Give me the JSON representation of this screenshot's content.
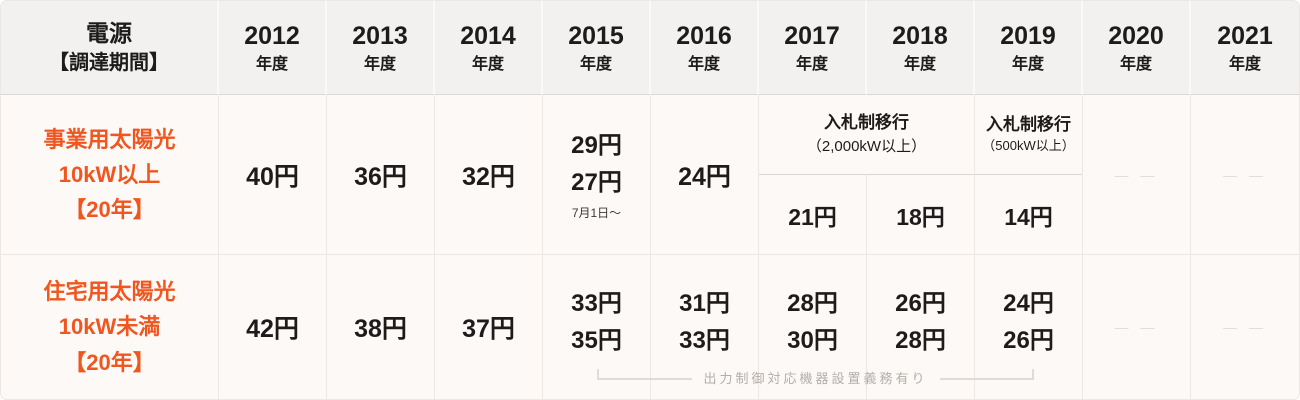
{
  "colors": {
    "accent": "#f0561f",
    "header-bg": "#f2f1f0",
    "body-bg": "#fdf9f6",
    "border": "#ece7e3",
    "border-dark": "#dcd7d3",
    "text": "#1e1c1a",
    "muted": "#b3aeab",
    "dash": "#e0dbd7"
  },
  "header": {
    "power_source": {
      "line1": "電源",
      "line2": "【調達期間】"
    },
    "years": [
      {
        "y": "2012",
        "suffix": "年度"
      },
      {
        "y": "2013",
        "suffix": "年度"
      },
      {
        "y": "2014",
        "suffix": "年度"
      },
      {
        "y": "2015",
        "suffix": "年度"
      },
      {
        "y": "2016",
        "suffix": "年度"
      },
      {
        "y": "2017",
        "suffix": "年度"
      },
      {
        "y": "2018",
        "suffix": "年度"
      },
      {
        "y": "2019",
        "suffix": "年度"
      },
      {
        "y": "2020",
        "suffix": "年度"
      },
      {
        "y": "2021",
        "suffix": "年度"
      }
    ]
  },
  "rows": [
    {
      "label": {
        "line1": "事業用太陽光",
        "line2": "10kW以上",
        "line3": "【20年】"
      },
      "cells": {
        "y2012": "40円",
        "y2013": "36円",
        "y2014": "32円",
        "y2015": {
          "v1": "29円",
          "v2": "27円",
          "note": "7月1日〜"
        },
        "y2016": "24円",
        "tender_2017_2018": {
          "title": "入札制移行",
          "subtitle": "（2,000kW以上）",
          "p2017": "21円",
          "p2018": "18円"
        },
        "tender_2019": {
          "title": "入札制移行",
          "subtitle": "（500kW以上）",
          "price": "14円"
        },
        "y2020": "— —",
        "y2021": "— —"
      }
    },
    {
      "label": {
        "line1": "住宅用太陽光",
        "line2": "10kW未満",
        "line3": "【20年】"
      },
      "cells": {
        "y2012": "42円",
        "y2013": "38円",
        "y2014": "37円",
        "y2015": {
          "v1": "33円",
          "v2": "35円"
        },
        "y2016": {
          "v1": "31円",
          "v2": "33円"
        },
        "y2017": {
          "v1": "28円",
          "v2": "30円"
        },
        "y2018": {
          "v1": "26円",
          "v2": "28円"
        },
        "y2019": {
          "v1": "24円",
          "v2": "26円"
        },
        "y2020": "— —",
        "y2021": "— —"
      }
    }
  ],
  "annotation": "出力制御対応機器設置義務有り"
}
